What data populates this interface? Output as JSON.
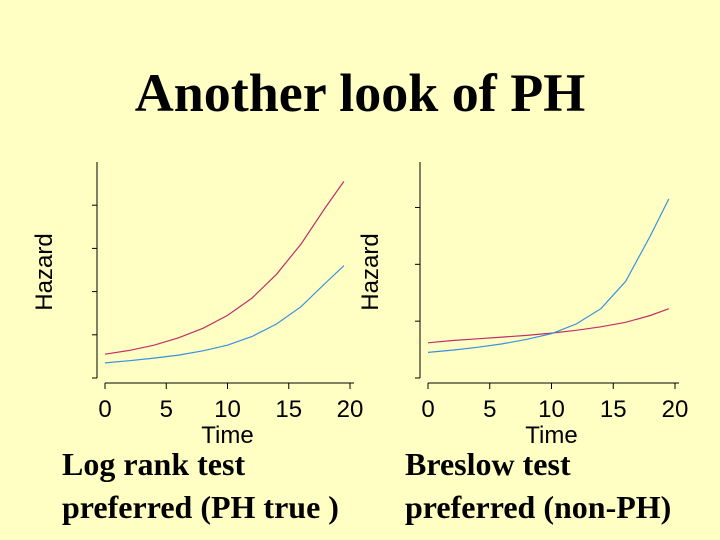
{
  "slide": {
    "title": "Another look of PH",
    "captions": {
      "left_line1": "Log rank test",
      "left_line2": "preferred (PH true )",
      "right_line1": "Breslow test",
      "right_line2": "preferred (non-PH)"
    }
  },
  "chart_data": [
    {
      "type": "line",
      "xlabel": "Time",
      "ylabel": "Hazard",
      "xlim": [
        0,
        20
      ],
      "x_ticks": [
        0,
        5,
        10,
        15,
        20
      ],
      "y_ticks": [
        1,
        2,
        3,
        4
      ],
      "ylim": [
        0,
        5
      ],
      "series": [
        {
          "color": "#C0306A",
          "x": [
            0,
            2,
            4,
            6,
            8,
            10,
            12,
            14,
            16,
            18,
            19.5
          ],
          "y": [
            0.55,
            0.64,
            0.76,
            0.93,
            1.15,
            1.45,
            1.85,
            2.4,
            3.1,
            3.95,
            4.55
          ]
        },
        {
          "color": "#3A8FE0",
          "x": [
            0,
            2,
            4,
            6,
            8,
            10,
            12,
            14,
            16,
            18,
            19.5
          ],
          "y": [
            0.35,
            0.4,
            0.46,
            0.53,
            0.63,
            0.76,
            0.96,
            1.25,
            1.65,
            2.2,
            2.6
          ]
        }
      ]
    },
    {
      "type": "line",
      "xlabel": "Time",
      "ylabel": "Hazard",
      "xlim": [
        0,
        20
      ],
      "x_ticks": [
        0,
        5,
        10,
        15,
        20
      ],
      "y_ticks": [
        1,
        2,
        3
      ],
      "ylim": [
        0,
        3.8
      ],
      "series": [
        {
          "color": "#C0306A",
          "x": [
            0,
            2,
            4,
            6,
            8,
            10,
            12,
            14,
            16,
            18,
            19.5
          ],
          "y": [
            0.62,
            0.66,
            0.69,
            0.72,
            0.75,
            0.79,
            0.84,
            0.9,
            0.98,
            1.1,
            1.22
          ]
        },
        {
          "color": "#3A8FE0",
          "x": [
            0,
            2,
            4,
            6,
            8,
            10,
            12,
            14,
            16,
            18,
            19.5
          ],
          "y": [
            0.45,
            0.49,
            0.54,
            0.6,
            0.68,
            0.78,
            0.95,
            1.22,
            1.7,
            2.5,
            3.15
          ]
        }
      ]
    }
  ]
}
